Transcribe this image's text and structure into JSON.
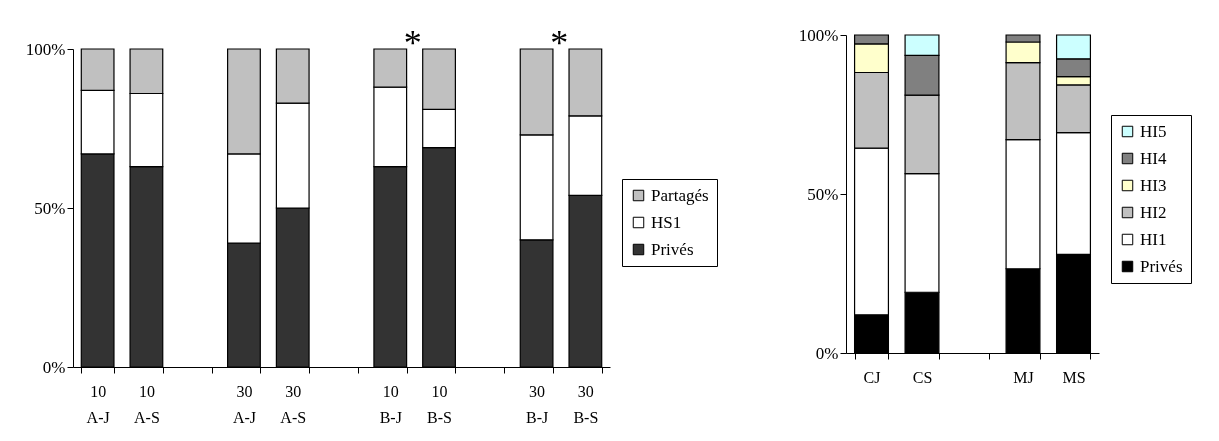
{
  "chart_data": [
    {
      "type": "bar",
      "stacked": true,
      "categories": [
        "10\nA-J",
        "10\nA-S",
        null,
        "30\nA-J",
        "30\nA-S",
        null,
        "10\nB-J",
        "10\nB-S",
        null,
        "30\nB-J",
        "30\nB-S"
      ],
      "series": [
        {
          "name": "Privés",
          "color": "#333333",
          "values": [
            67,
            63,
            null,
            39,
            50,
            null,
            63,
            69,
            null,
            40,
            54
          ]
        },
        {
          "name": "HS1",
          "color": "#ffffff",
          "values": [
            20,
            23,
            null,
            28,
            33,
            null,
            25,
            12,
            null,
            33,
            25
          ]
        },
        {
          "name": "Partagés",
          "color": "#c0c0c0",
          "values": [
            13,
            14,
            null,
            33,
            17,
            null,
            12,
            19,
            null,
            27,
            21
          ]
        }
      ],
      "ylim": [
        0,
        100
      ],
      "yticks": [
        {
          "value": 0,
          "label": "0%"
        },
        {
          "value": 50,
          "label": "50%"
        },
        {
          "value": 100,
          "label": "100%"
        }
      ],
      "annotations": [
        {
          "text": "*",
          "x": "10\nB-J",
          "y": 100
        },
        {
          "text": "*",
          "x": "30\nB-J",
          "y": 100
        }
      ],
      "legend": "right",
      "grid": false
    },
    {
      "type": "bar",
      "stacked": true,
      "categories": [
        "CJ",
        "CS",
        null,
        "MJ",
        "MS"
      ],
      "series": [
        {
          "name": "Privés",
          "color": "#000000",
          "values": [
            12,
            19.1,
            null,
            26.5,
            31
          ]
        },
        {
          "name": "HI1",
          "color": "#ffffff",
          "values": [
            52.4,
            37.3,
            null,
            40.6,
            38.3
          ]
        },
        {
          "name": "HI2",
          "color": "#c0c0c0",
          "values": [
            23.8,
            24.7,
            null,
            24.2,
            15
          ]
        },
        {
          "name": "HI3",
          "color": "#ffffcc",
          "values": [
            9,
            null,
            null,
            6.5,
            2.6
          ]
        },
        {
          "name": "HI4",
          "color": "#808080",
          "values": [
            2.8,
            12.5,
            null,
            2.2,
            5.6
          ]
        },
        {
          "name": "HI5",
          "color": "#ccffff",
          "values": [
            null,
            6.4,
            null,
            null,
            7.5
          ]
        }
      ],
      "ylim": [
        0,
        100
      ],
      "yticks": [
        {
          "value": 0,
          "label": "0%"
        },
        {
          "value": 50,
          "label": "50%"
        },
        {
          "value": 100,
          "label": "100%"
        }
      ],
      "legend": "right",
      "grid": false
    }
  ]
}
